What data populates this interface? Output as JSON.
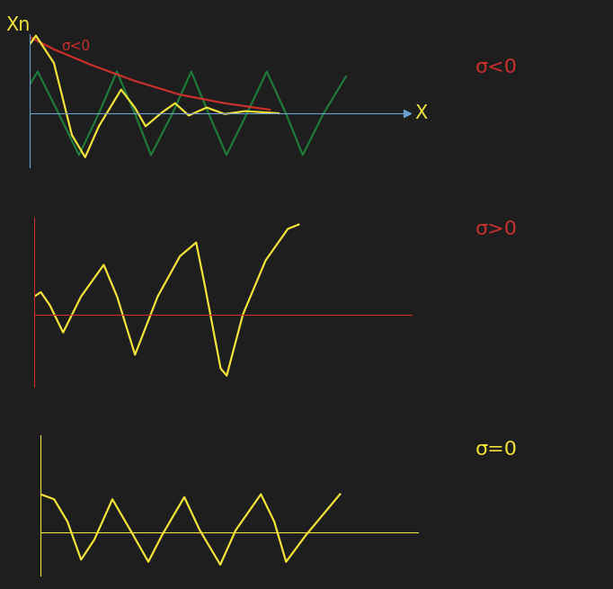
{
  "chart_data": [
    {
      "type": "line",
      "xlabel": "X",
      "ylabel": "Xn",
      "annotation": "σ<0",
      "annotation_color": "#c8302c",
      "xlim": [
        0,
        10.5
      ],
      "ylim": [
        -0.75,
        1.1
      ],
      "tick_labels": false,
      "grid": false,
      "series": [
        {
          "color": "#1f7a3a",
          "x": [
            0,
            0.23,
            0.73,
            1.38,
            1.93,
            2.43,
            2.93,
            3.38,
            3.98,
            4.5,
            4.98,
            5.48,
            6.05,
            6.6,
            7.13,
            7.6,
            8.18,
            8.8
          ],
          "values": [
            0.39,
            0.58,
            0.08,
            -0.58,
            0,
            0.58,
            0,
            -0.58,
            0,
            0.58,
            0,
            -0.58,
            0,
            0.58,
            0,
            -0.58,
            0,
            0.51
          ]
        },
        {
          "name": "σ<0",
          "color": "#c8302c",
          "x": [
            0.05,
            0.68,
            1.68,
            2.93,
            4.18,
            5.43,
            6.68
          ],
          "values": [
            1.05,
            0.89,
            0.68,
            0.45,
            0.26,
            0.14,
            0.05
          ]
        },
        {
          "color": "#f2e23a",
          "x": [
            0,
            0.18,
            0.68,
            1.18,
            1.55,
            1.93,
            2.55,
            2.93,
            3.23,
            3.68,
            4.05,
            4.43,
            4.93,
            5.43,
            6.0,
            6.93
          ],
          "values": [
            0.95,
            1.08,
            0.7,
            -0.3,
            -0.61,
            -0.18,
            0.33,
            0.08,
            -0.18,
            0.01,
            0.14,
            -0.03,
            0.08,
            -0.01,
            0.03,
            0
          ]
        }
      ]
    },
    {
      "type": "line",
      "annotation": "σ>0",
      "annotation_color": "#c8302c",
      "xlim": [
        0,
        10.5
      ],
      "ylim": [
        -1.0,
        1.35
      ],
      "tick_labels": false,
      "grid": false,
      "series": [
        {
          "color": "#f2e23a",
          "x": [
            0,
            0.18,
            0.43,
            0.8,
            1.3,
            1.93,
            2.3,
            2.8,
            3.43,
            4.05,
            4.5,
            4.75,
            5.18,
            5.35,
            5.8,
            6.43,
            7.05,
            7.35
          ],
          "values": [
            0.25,
            0.31,
            0.13,
            -0.25,
            0.25,
            0.69,
            0.25,
            -0.56,
            0.25,
            0.81,
            1.0,
            0.38,
            -0.75,
            -0.85,
            0,
            0.75,
            1.19,
            1.25
          ]
        }
      ]
    },
    {
      "type": "line",
      "annotation": "σ=0",
      "annotation_color": "#f2e23a",
      "xlim": [
        0,
        10.5
      ],
      "ylim": [
        -0.6,
        1.35
      ],
      "tick_labels": false,
      "grid": false,
      "series": [
        {
          "color": "#f2e23a",
          "x": [
            0,
            0.38,
            0.75,
            1.13,
            1.5,
            2.0,
            2.5,
            3.0,
            3.38,
            4.0,
            4.43,
            5.0,
            5.43,
            6.13,
            6.5,
            6.83,
            7.38,
            8.33
          ],
          "values": [
            0.53,
            0.46,
            0.15,
            -0.38,
            -0.1,
            0.46,
            0.03,
            -0.41,
            -0.04,
            0.49,
            0.03,
            -0.45,
            0.03,
            0.53,
            0.15,
            -0.41,
            -0.04,
            0.53
          ]
        }
      ]
    }
  ]
}
